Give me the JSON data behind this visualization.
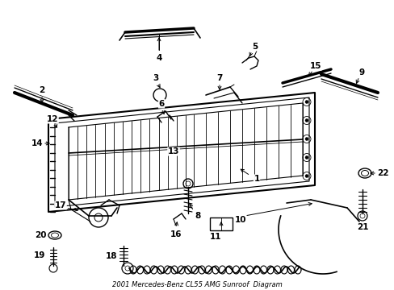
{
  "title": "2001 Mercedes-Benz CL55 AMG Sunroof  Diagram",
  "bg_color": "#ffffff",
  "figsize": [
    4.89,
    3.6
  ],
  "dpi": 100
}
